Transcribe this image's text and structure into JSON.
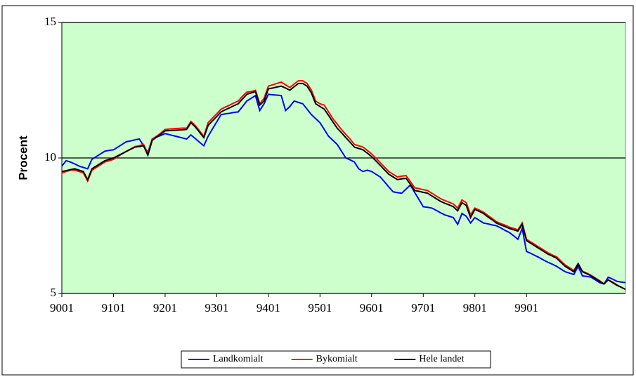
{
  "chart_data": {
    "type": "line",
    "y_label": "Procent",
    "categories": [
      "9001",
      null,
      null,
      null,
      null,
      null,
      null,
      null,
      null,
      null,
      null,
      null,
      "9101",
      null,
      null,
      null,
      null,
      null,
      null,
      null,
      null,
      null,
      null,
      null,
      "9201",
      null,
      null,
      null,
      null,
      null,
      null,
      null,
      null,
      null,
      null,
      null,
      "9301",
      null,
      null,
      null,
      null,
      null,
      null,
      null,
      null,
      null,
      null,
      null,
      "9401",
      null,
      null,
      null,
      null,
      null,
      null,
      null,
      null,
      null,
      null,
      null,
      "9501",
      null,
      null,
      null,
      null,
      null,
      null,
      null,
      null,
      null,
      null,
      null,
      "9601",
      null,
      null,
      null,
      null,
      null,
      null,
      null,
      null,
      null,
      null,
      null,
      "9701",
      null,
      null,
      null,
      null,
      null,
      null,
      null,
      null,
      null,
      null,
      null,
      "9801",
      null,
      null,
      null,
      null,
      null,
      null,
      null,
      null,
      null,
      null,
      null,
      "9901",
      null,
      null,
      null,
      null,
      null,
      null,
      null,
      null,
      null,
      null,
      null,
      null,
      null,
      null,
      null,
      null,
      null,
      null,
      null,
      null,
      null,
      null,
      null
    ],
    "series": [
      {
        "name": "Landkomialt",
        "color": "#0000ff",
        "values": [
          9.7,
          9.9,
          9.85,
          9.78,
          9.7,
          9.65,
          9.6,
          9.95,
          10.05,
          10.15,
          10.25,
          10.28,
          10.3,
          10.4,
          10.5,
          10.6,
          10.63,
          10.67,
          10.7,
          10.45,
          10.2,
          10.7,
          10.77,
          10.83,
          10.9,
          10.86,
          10.82,
          10.78,
          10.74,
          10.7,
          10.85,
          10.72,
          10.58,
          10.45,
          10.8,
          11.07,
          11.33,
          11.6,
          11.63,
          11.65,
          11.68,
          11.7,
          11.9,
          12.1,
          12.2,
          12.3,
          11.75,
          12.0,
          12.35,
          12.33,
          12.32,
          12.3,
          11.75,
          11.9,
          12.1,
          12.05,
          12.0,
          11.8,
          11.6,
          11.45,
          11.3,
          11.05,
          10.8,
          10.65,
          10.5,
          10.25,
          10.0,
          9.93,
          9.85,
          9.6,
          9.5,
          9.55,
          9.5,
          9.4,
          9.3,
          9.12,
          8.93,
          8.75,
          8.72,
          8.7,
          8.85,
          9.0,
          8.73,
          8.47,
          8.2,
          8.18,
          8.15,
          8.07,
          7.98,
          7.9,
          7.85,
          7.8,
          7.55,
          7.95,
          7.85,
          7.6,
          7.8,
          7.7,
          7.6,
          7.57,
          7.53,
          7.5,
          7.42,
          7.33,
          7.25,
          7.13,
          7.0,
          7.4,
          6.55,
          6.48,
          6.4,
          6.32,
          6.23,
          6.15,
          6.08,
          6.0,
          5.9,
          5.8,
          5.75,
          5.7,
          6.0,
          5.65,
          5.63,
          5.6,
          5.5,
          5.4,
          5.35,
          5.6,
          5.53,
          5.45,
          5.42,
          5.4
        ]
      },
      {
        "name": "Bykomialt",
        "color": "#ff0000",
        "values": [
          9.45,
          9.5,
          9.55,
          9.55,
          9.5,
          9.45,
          9.15,
          9.55,
          9.65,
          9.75,
          9.85,
          9.9,
          9.95,
          10.05,
          10.15,
          10.25,
          10.33,
          10.42,
          10.45,
          10.5,
          10.15,
          10.7,
          10.8,
          10.92,
          11.05,
          11.07,
          11.08,
          11.09,
          11.1,
          11.1,
          11.35,
          11.2,
          11.0,
          10.8,
          11.3,
          11.47,
          11.63,
          11.8,
          11.88,
          11.95,
          12.03,
          12.1,
          12.28,
          12.43,
          12.45,
          12.5,
          12.0,
          12.2,
          12.65,
          12.7,
          12.75,
          12.8,
          12.7,
          12.6,
          12.73,
          12.85,
          12.85,
          12.75,
          12.5,
          12.1,
          12.0,
          11.95,
          11.7,
          11.45,
          11.25,
          11.05,
          10.87,
          10.7,
          10.5,
          10.45,
          10.4,
          10.28,
          10.15,
          9.99,
          9.83,
          9.66,
          9.5,
          9.4,
          9.3,
          9.33,
          9.35,
          9.13,
          8.9,
          8.87,
          8.83,
          8.8,
          8.7,
          8.6,
          8.5,
          8.43,
          8.37,
          8.3,
          8.15,
          8.45,
          8.35,
          7.9,
          8.15,
          8.08,
          8.0,
          7.88,
          7.77,
          7.65,
          7.58,
          7.52,
          7.45,
          7.4,
          7.35,
          7.6,
          7.0,
          6.9,
          6.8,
          6.7,
          6.6,
          6.5,
          6.42,
          6.35,
          6.2,
          6.05,
          5.95,
          5.85,
          6.1,
          5.82,
          5.75,
          5.67,
          5.57,
          5.47,
          5.35,
          5.5,
          5.42,
          5.32,
          5.23,
          5.15
        ]
      },
      {
        "name": "Hele landet",
        "color": "#000000",
        "values": [
          9.5,
          9.53,
          9.57,
          9.6,
          9.55,
          9.5,
          9.2,
          9.6,
          9.7,
          9.8,
          9.9,
          9.95,
          10.0,
          10.08,
          10.16,
          10.24,
          10.32,
          10.4,
          10.42,
          10.45,
          10.1,
          10.65,
          10.77,
          10.88,
          11.0,
          11.01,
          11.02,
          11.03,
          11.04,
          11.05,
          11.3,
          11.15,
          10.95,
          10.75,
          11.2,
          11.37,
          11.53,
          11.7,
          11.78,
          11.85,
          11.93,
          12.0,
          12.18,
          12.35,
          12.4,
          12.45,
          11.95,
          12.1,
          12.55,
          12.58,
          12.62,
          12.65,
          12.58,
          12.5,
          12.63,
          12.75,
          12.75,
          12.65,
          12.4,
          12.0,
          11.9,
          11.8,
          11.57,
          11.33,
          11.1,
          10.93,
          10.75,
          10.58,
          10.4,
          10.35,
          10.3,
          10.18,
          10.05,
          9.89,
          9.73,
          9.56,
          9.4,
          9.3,
          9.2,
          9.23,
          9.25,
          9.03,
          8.8,
          8.77,
          8.73,
          8.7,
          8.6,
          8.5,
          8.4,
          8.33,
          8.27,
          8.2,
          8.05,
          8.35,
          8.25,
          7.8,
          8.1,
          8.03,
          7.95,
          7.83,
          7.72,
          7.6,
          7.53,
          7.47,
          7.4,
          7.35,
          7.3,
          7.55,
          6.95,
          6.85,
          6.75,
          6.65,
          6.55,
          6.45,
          6.38,
          6.3,
          6.15,
          6.0,
          5.9,
          5.8,
          6.1,
          5.8,
          5.73,
          5.65,
          5.55,
          5.45,
          5.35,
          5.5,
          5.4,
          5.3,
          5.23,
          5.15
        ]
      }
    ],
    "ylim": [
      5,
      15
    ],
    "yticks": [
      5,
      10,
      15
    ],
    "grid": true,
    "plot_background": "#ccffcc",
    "legend": "bottom"
  }
}
